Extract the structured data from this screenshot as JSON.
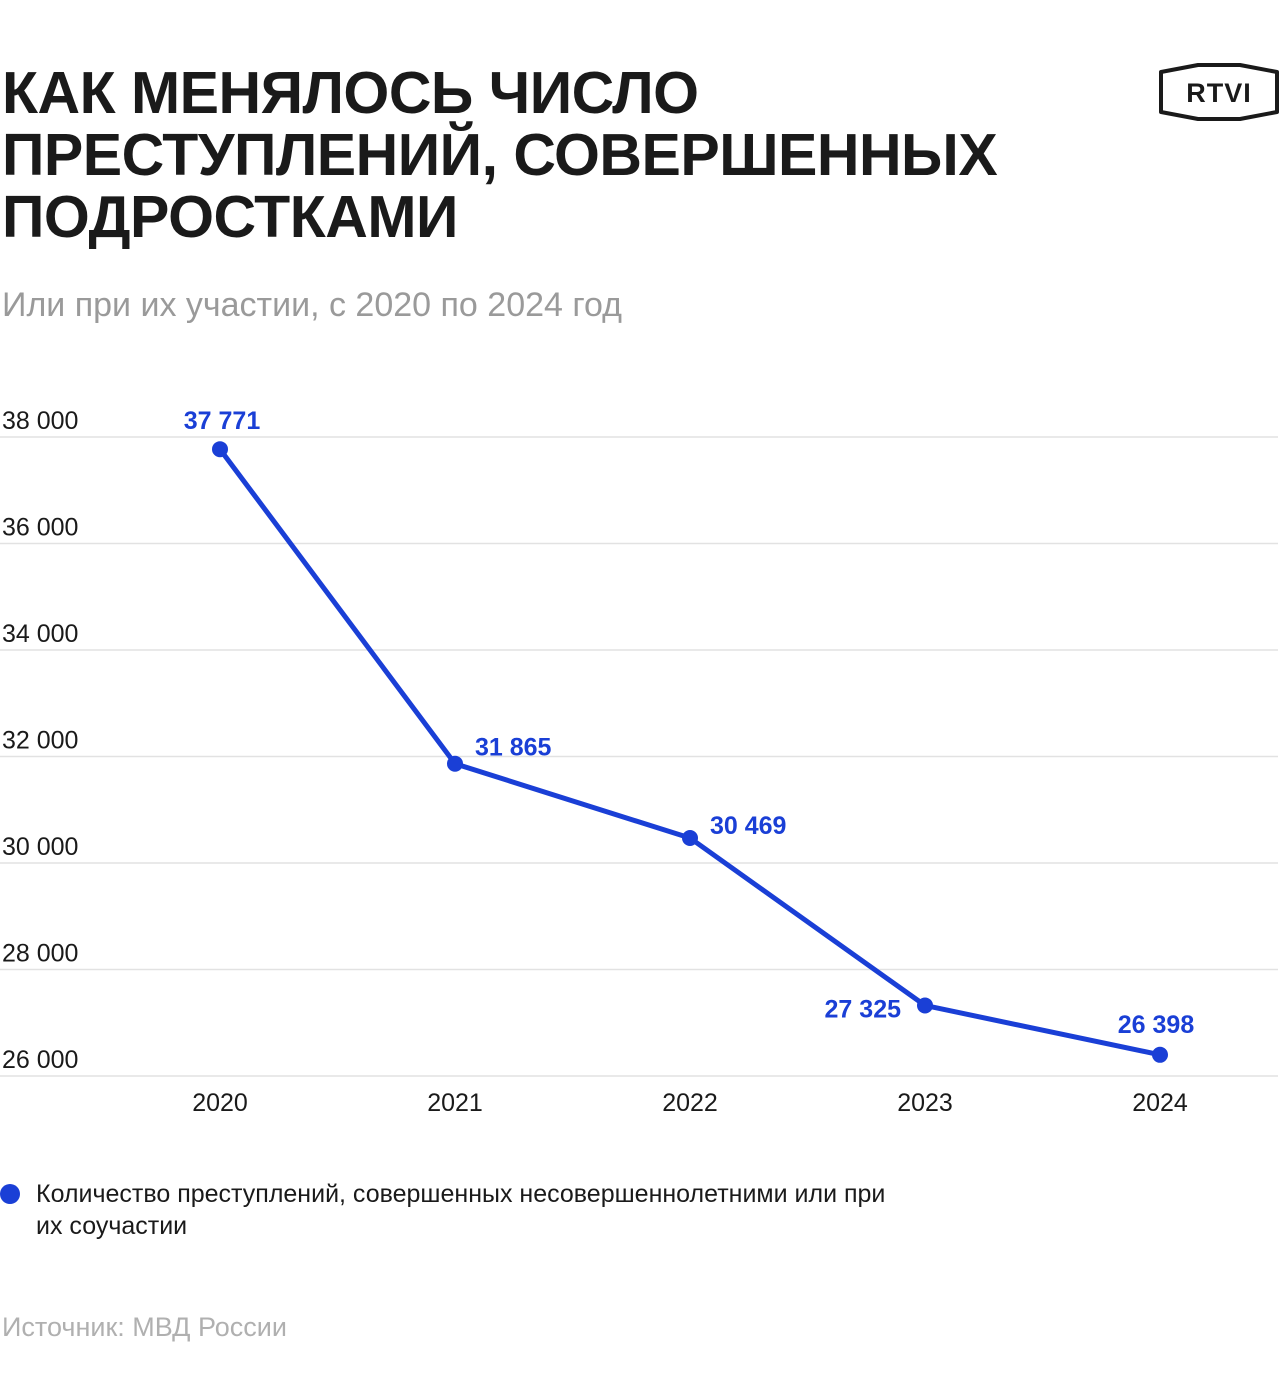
{
  "header": {
    "title": "КАК МЕНЯЛОСЬ ЧИСЛО ПРЕСТУПЛЕНИЙ, СОВЕРШЕННЫХ ПОДРОСТКАМИ",
    "subtitle": "Или при их участии, с 2020 по 2024 год",
    "logo": "RTVI"
  },
  "colors": {
    "accent": "#1a3fd6",
    "grid": "#e2e2e2",
    "text": "#1a1a1a"
  },
  "chart_data": {
    "type": "line",
    "title": "КАК МЕНЯЛОСЬ ЧИСЛО ПРЕСТУПЛЕНИЙ, СОВЕРШЕННЫХ ПОДРОСТКАМИ",
    "subtitle": "Или при их участии, с 2020 по 2024 год",
    "categories": [
      "2020",
      "2021",
      "2022",
      "2023",
      "2024"
    ],
    "series": [
      {
        "name": "Количество преступлений, совершенных несовершеннолетними или при их соучастии",
        "values": [
          37771,
          31865,
          30469,
          27325,
          26398
        ],
        "labels": [
          "37 771",
          "31 865",
          "30 469",
          "27 325",
          "26 398"
        ]
      }
    ],
    "y_ticks": [
      26000,
      28000,
      30000,
      32000,
      34000,
      36000,
      38000
    ],
    "y_tick_labels": [
      "26 000",
      "28 000",
      "30 000",
      "32 000",
      "34 000",
      "36 000",
      "38 000"
    ],
    "ylim": [
      26000,
      38000
    ],
    "grid": true,
    "legend_position": "bottom-left"
  },
  "legend": {
    "label": "Количество преступлений, совершенных несовершеннолетними или при их соучастии"
  },
  "footer": {
    "source": "Источник: МВД России"
  }
}
